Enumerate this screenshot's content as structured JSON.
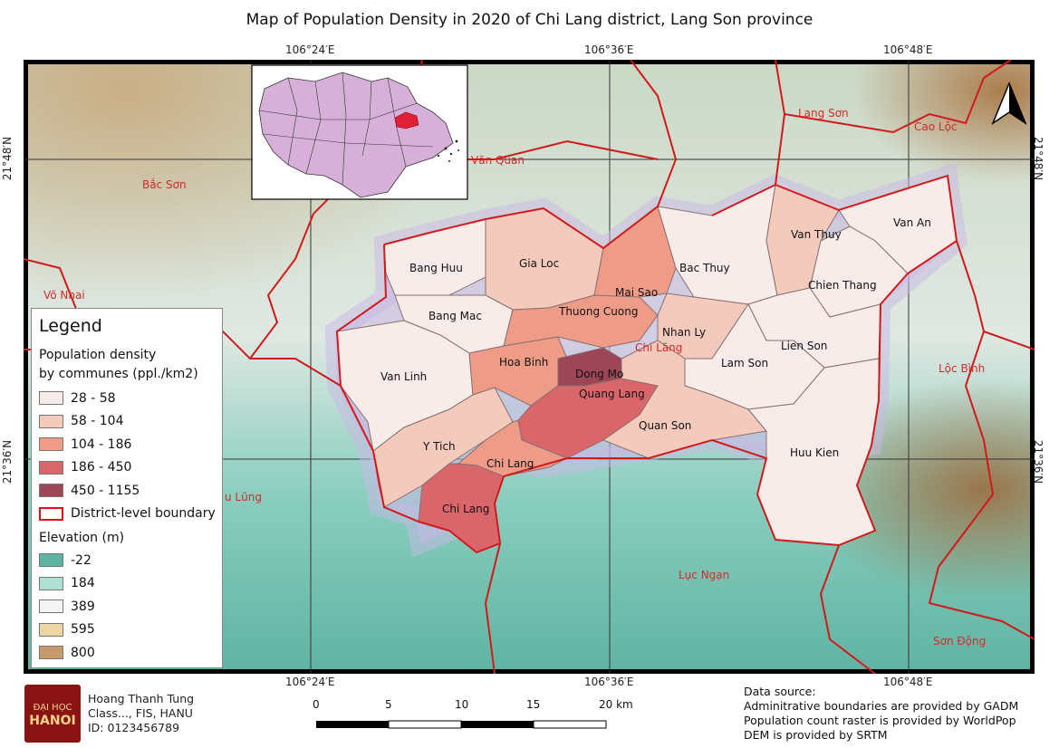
{
  "title": "Map of Population Density in 2020 of Chi Lang district, Lang Son province",
  "coords": {
    "top": [
      "106°24′E",
      "106°36′E",
      "106°48′E"
    ],
    "bottom": [
      "106°24′E",
      "106°36′E",
      "106°48′E"
    ],
    "left": [
      "21°48′N",
      "21°36′N"
    ],
    "right": [
      "21°48′N",
      "21°36′N"
    ]
  },
  "places": {
    "lang_son": "Lạng Sơn",
    "cao_loc": "Cao Lộc",
    "van_quan": "Văn Quan",
    "bac_son": "Bắc Sơn",
    "vo_nhai": "Võ Nhai",
    "chi_lang_red": "Chi Lăng",
    "loc_binh": "Lộc Bình",
    "huu_lung": "u Lũng",
    "luc_ngan": "Lục Ngạn",
    "son_dong": "Sơn Động"
  },
  "communes": {
    "bang_huu": "Bang Huu",
    "gia_loc": "Gia Loc",
    "bang_mac": "Bang Mac",
    "van_linh": "Van Linh",
    "thuong_cuong": "Thuong Cuong",
    "mai_sao": "Mai Sao",
    "bac_thuy": "Bac Thuy",
    "van_thuy": "Van Thuy",
    "van_an": "Van An",
    "chien_thang": "Chien Thang",
    "nhan_ly": "Nhan Ly",
    "lien_son": "Lien Son",
    "hoa_binh": "Hoa Binh",
    "dong_mo": "Dong Mo",
    "quang_lang": "Quang Lang",
    "lam_son": "Lam Son",
    "quan_son": "Quan Son",
    "y_tich": "Y Tich",
    "chi_lang_1": "Chi Lang",
    "chi_lang_2": "Chi Lang",
    "huu_kien": "Huu Kien"
  },
  "legend": {
    "title": "Legend",
    "population_heading_1": "Population density",
    "population_heading_2": "by communes (ppl./km2)",
    "density_classes": [
      {
        "label": "28 - 58",
        "color": "#f7ecea"
      },
      {
        "label": "58 - 104",
        "color": "#f4cabd"
      },
      {
        "label": "104 - 186",
        "color": "#ee9c87"
      },
      {
        "label": "186 - 450",
        "color": "#d9666a"
      },
      {
        "label": "450 - 1155",
        "color": "#9c4657"
      }
    ],
    "boundary_label": "District-level boundary",
    "elevation_heading": "Elevation (m)",
    "elevation_classes": [
      {
        "label": "-22",
        "color": "#5fb3a2"
      },
      {
        "label": "184",
        "color": "#aee0d4"
      },
      {
        "label": "389",
        "color": "#f4f4f4"
      },
      {
        "label": "595",
        "color": "#ecd6a4"
      },
      {
        "label": "800",
        "color": "#c79a6d"
      }
    ]
  },
  "author": {
    "name": "Hoang Thanh Tung",
    "class": "Class..., FIS, HANU",
    "id": "ID: 0123456789"
  },
  "logo": {
    "top": "ĐẠI HỌC",
    "bottom": "HANOI"
  },
  "scale_bar": {
    "labels": [
      "0",
      "5",
      "10",
      "15",
      "20 km"
    ]
  },
  "sources": {
    "heading": "Data source:",
    "line1": "Adminitrative boundaries are provided by GADM",
    "line2": "Population count raster is provided by WorldPop",
    "line3": "DEM is provided by SRTM"
  },
  "colors": {
    "boundary": "#d11a1a",
    "accent_text": "#d42a2a",
    "terrain_low": "#7cc7b6",
    "terrain_mid": "#dfe8e2",
    "inset_fill": "#d7b0d9"
  },
  "north_arrow": "north-arrow-icon"
}
